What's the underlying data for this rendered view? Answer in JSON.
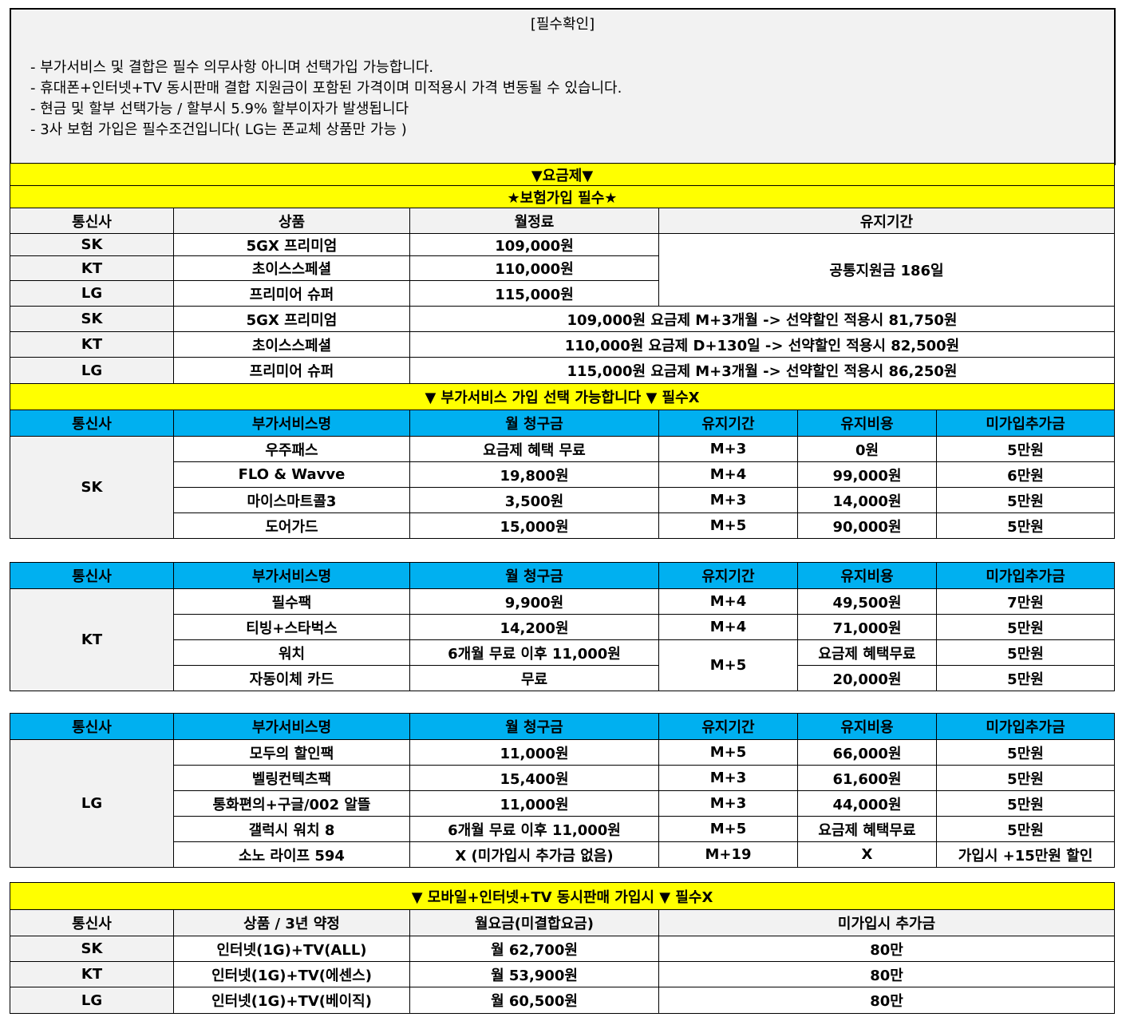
{
  "notice": {
    "title": "[필수확인]",
    "lines": [
      "- 부가서비스 및 결합은 필수 의무사항 아니며 선택가입 가능합니다.",
      "- 휴대폰+인터넷+TV 동시판매 결합 지원금이 포함된 가격이며 미적용시 가격 변동될 수 있습니다.",
      "- 현금 및 할부 선택가능 / 할부시 5.9% 할부이자가 발생됩니다",
      "- 3사 보험 가입은 필수조건입니다( LG는 폰교체 상품만 가능 )"
    ]
  },
  "plan": {
    "banner1": "▼요금제▼",
    "banner2": "★보험가입 필수★",
    "headers": [
      "통신사",
      "상품",
      "월정료",
      "유지기간"
    ],
    "rows": [
      {
        "carrier": "SK",
        "product": "5GX 프리미엄",
        "fee": "109,000원"
      },
      {
        "carrier": "KT",
        "product": "초이스스페셜",
        "fee": "110,000원"
      },
      {
        "carrier": "LG",
        "product": "프리미어 슈퍼",
        "fee": "115,000원"
      }
    ],
    "common": "공통지원금 186일",
    "discount": [
      {
        "carrier": "SK",
        "product": "5GX 프리미엄",
        "text": "109,000원 요금제 M+3개월 -> 선약할인 적용시 81,750원"
      },
      {
        "carrier": "KT",
        "product": "초이스스페셜",
        "text": "110,000원 요금제 D+130일 -> 선약할인 적용시 82,500원"
      },
      {
        "carrier": "LG",
        "product": "프리미어 슈퍼",
        "text": "115,000원 요금제 M+3개월 -> 선약할인 적용시 86,250원"
      }
    ]
  },
  "addon": {
    "banner": "▼ 부가서비스 가입 선택 가능합니다 ▼ 필수X",
    "headers": [
      "통신사",
      "부가서비스명",
      "월 청구금",
      "유지기간",
      "유지비용",
      "미가입추가금"
    ],
    "sk": {
      "carrier": "SK",
      "rows": [
        [
          "우주패스",
          "요금제 혜택 무료",
          "M+3",
          "0원",
          "5만원"
        ],
        [
          "FLO & Wavve",
          "19,800원",
          "M+4",
          "99,000원",
          "6만원"
        ],
        [
          "마이스마트콜3",
          "3,500원",
          "M+3",
          "14,000원",
          "5만원"
        ],
        [
          "도어가드",
          "15,000원",
          "M+5",
          "90,000원",
          "5만원"
        ]
      ]
    },
    "kt": {
      "carrier": "KT",
      "rows": [
        [
          "필수팩",
          "9,900원",
          "M+4",
          "49,500원",
          "7만원"
        ],
        [
          "티빙+스타벅스",
          "14,200원",
          "M+4",
          "71,000원",
          "5만원"
        ],
        [
          "워치",
          "6개월 무료 이후 11,000원",
          "M+5",
          "요금제 혜택무료",
          "5만원"
        ],
        [
          "자동이체 카드",
          "무료",
          "",
          "20,000원",
          "5만원"
        ]
      ]
    },
    "lg": {
      "carrier": "LG",
      "rows": [
        [
          "모두의 할인팩",
          "11,000원",
          "M+5",
          "66,000원",
          "5만원"
        ],
        [
          "벨링컨텍츠팩",
          "15,400원",
          "M+3",
          "61,600원",
          "5만원"
        ],
        [
          "통화편의+구글/002 알뜰",
          "11,000원",
          "M+3",
          "44,000원",
          "5만원"
        ],
        [
          "갤럭시 워치 8",
          "6개월 무료 이후 11,000원",
          "M+5",
          "요금제 혜택무료",
          "5만원"
        ],
        [
          "소노 라이프 594",
          "X (미가입시 추가금 없음)",
          "M+19",
          "X",
          "가입시 +15만원 할인"
        ]
      ]
    }
  },
  "bundle": {
    "banner": "▼ 모바일+인터넷+TV 동시판매 가입시 ▼ 필수X",
    "headers": [
      "통신사",
      "상품 / 3년 약정",
      "월요금(미결합요금)",
      "미가입시 추가금"
    ],
    "rows": [
      [
        "SK",
        "인터넷(1G)+TV(ALL)",
        "월 62,700원",
        "80만"
      ],
      [
        "KT",
        "인터넷(1G)+TV(에센스)",
        "월 53,900원",
        "80만"
      ],
      [
        "LG",
        "인터넷(1G)+TV(베이직)",
        "월 60,500원",
        "80만"
      ]
    ]
  },
  "colors": {
    "yellow": "#ffff00",
    "blue": "#00b0f0",
    "gray": "#f2f2f2"
  }
}
